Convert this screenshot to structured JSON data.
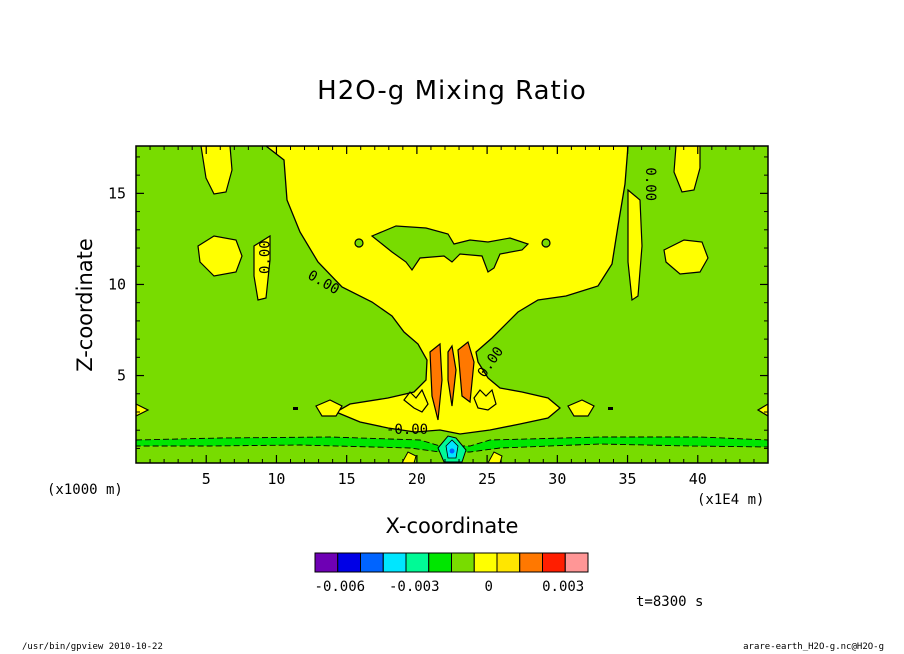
{
  "figure": {
    "title": "H2O-g Mixing Ratio",
    "x_unit_note": "(x1000 m)",
    "x_scale_note": "(x1E4 m)",
    "timestamp": "t=8300 s",
    "footer_left": "/usr/bin/gpview  2010-10-22",
    "footer_right": "arare-earth_H2O-g.nc@H2O-g"
  },
  "chart_data": {
    "type": "heatmap",
    "title": "H2O-g Mixing Ratio",
    "xlabel": "X-coordinate",
    "ylabel": "Z-coordinate",
    "xlim": [
      0,
      45
    ],
    "ylim": [
      0.2,
      17.6
    ],
    "x_ticks": [
      5,
      10,
      15,
      20,
      25,
      30,
      35,
      40
    ],
    "y_ticks": [
      5,
      10,
      15
    ],
    "colorbar": {
      "levels": [
        -0.007,
        -0.006,
        -0.005,
        -0.004,
        -0.003,
        -0.002,
        -0.001,
        0,
        0.001,
        0.002,
        0.003,
        0.004
      ],
      "colors": [
        "#6e00b4",
        "#0000e6",
        "#0064ff",
        "#00e6ff",
        "#00fa96",
        "#00e600",
        "#78dc00",
        "#ffff00",
        "#ffe600",
        "#ff7800",
        "#ff1e00",
        "#ff9696"
      ],
      "tick_labels": [
        "-0.006",
        "-0.003",
        "0",
        "0.003"
      ],
      "tick_values": [
        -0.006,
        -0.003,
        0,
        0.003
      ]
    },
    "contour_labels": [
      {
        "text": "0.00",
        "x": 9.5,
        "z": 11.5,
        "angle": -90
      },
      {
        "text": "0.00",
        "x": 13.2,
        "z": 9.9,
        "angle": 30
      },
      {
        "text": "0.00",
        "x": 36.3,
        "z": 15.5,
        "angle": 90
      },
      {
        "text": "0.00",
        "x": 25.5,
        "z": 5.6,
        "angle": -55
      },
      {
        "text": "-0.00",
        "x": 19.3,
        "z": 1.8,
        "angle": 0
      }
    ]
  }
}
